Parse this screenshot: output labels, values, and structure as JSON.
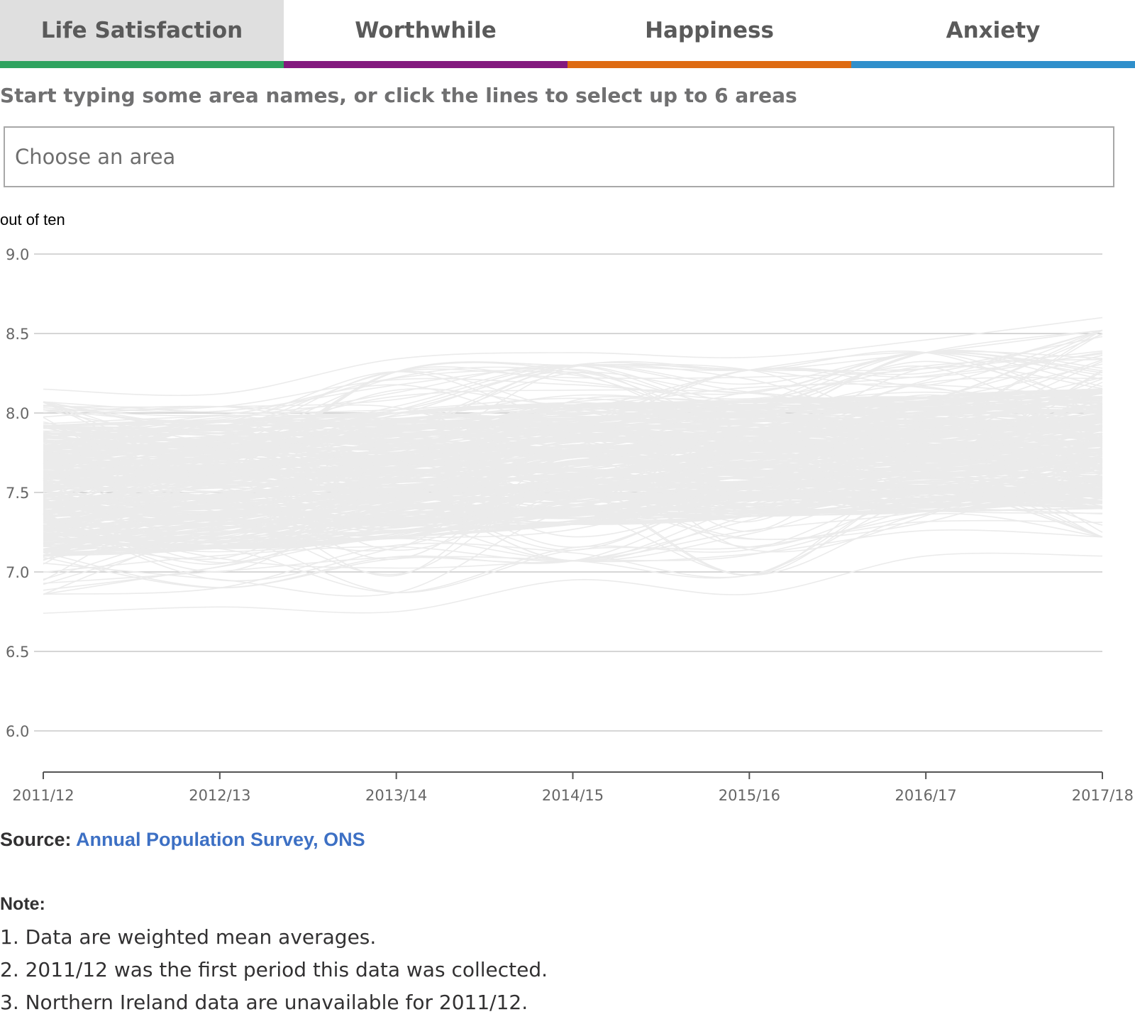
{
  "tabs": [
    {
      "label": "Life Satisfaction",
      "color": "#2fa35f",
      "active": true
    },
    {
      "label": "Worthwhile",
      "color": "#83197e",
      "active": false
    },
    {
      "label": "Happiness",
      "color": "#de6a12",
      "active": false
    },
    {
      "label": "Anxiety",
      "color": "#2f8fcb",
      "active": false
    }
  ],
  "instruction": "Start typing some area names, or click the lines to select up to 6 areas",
  "search": {
    "placeholder": "Choose an area",
    "value": ""
  },
  "chart_data": {
    "type": "line",
    "ylabel": "out of ten",
    "ylim": [
      5.75,
      9.0
    ],
    "yticks": [
      "9.0",
      "8.5",
      "8.0",
      "7.5",
      "7.0",
      "6.5",
      "6.0"
    ],
    "x": [
      "2011/12",
      "2012/13",
      "2013/14",
      "2014/15",
      "2015/16",
      "2016/17",
      "2017/18"
    ],
    "line_color": "#ebebeb",
    "grid": true,
    "series_note": "hundreds of unlabeled local-area series (grey)",
    "series_envelope": {
      "upper": [
        8.15,
        8.12,
        8.34,
        8.38,
        8.35,
        8.46,
        8.6
      ],
      "lower": [
        6.74,
        6.78,
        6.75,
        6.95,
        6.86,
        7.1,
        7.1
      ],
      "core_upper": [
        7.92,
        7.95,
        8.0,
        8.05,
        8.08,
        8.1,
        8.15
      ],
      "core_lower": [
        7.1,
        7.15,
        7.22,
        7.3,
        7.35,
        7.38,
        7.4
      ]
    }
  },
  "source": {
    "prefix": "Source:",
    "link_text": "Annual Population Survey, ONS",
    "link_color": "#3d70c4"
  },
  "note": {
    "title": "Note:",
    "items": [
      "1. Data are weighted mean averages.",
      "2. 2011/12 was the first period this data was collected.",
      "3. Northern Ireland data are unavailable for 2011/12."
    ]
  }
}
